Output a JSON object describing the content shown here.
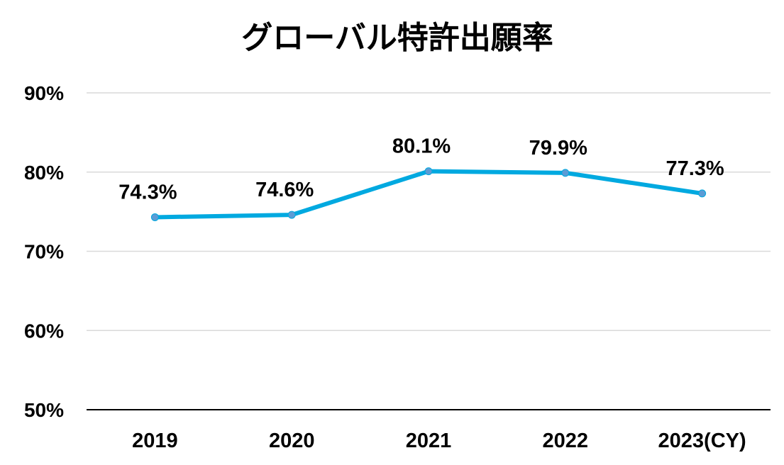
{
  "chart_data": {
    "type": "line",
    "title": "グローバル特許出願率",
    "categories": [
      "2019",
      "2020",
      "2021",
      "2022",
      "2023(CY)"
    ],
    "series": [
      {
        "name": "グローバル特許出願率",
        "values": [
          74.3,
          74.6,
          80.1,
          79.9,
          77.3
        ],
        "labels": [
          "74.3%",
          "74.6%",
          "80.1%",
          "79.9%",
          "77.3%"
        ]
      }
    ],
    "ylim": [
      50,
      90
    ],
    "yticks": [
      50,
      60,
      70,
      80,
      90
    ],
    "ytick_labels": [
      "50%",
      "60%",
      "70%",
      "80%",
      "90%"
    ],
    "grid": true,
    "line_color": "#00A9E0",
    "marker_color": "#5B9BD5"
  }
}
